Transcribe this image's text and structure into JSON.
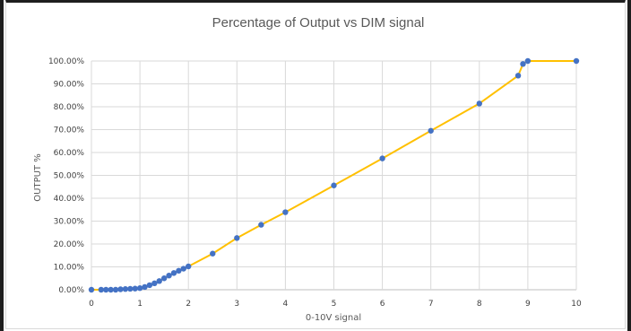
{
  "chart_data": {
    "type": "scatter",
    "title": "Percentage of Output vs DIM signal",
    "xlabel": "0-10V signal",
    "ylabel": "OUTPUT %",
    "xlim": [
      0,
      10
    ],
    "ylim": [
      0,
      100
    ],
    "x_ticks": [
      "0",
      "1",
      "2",
      "3",
      "4",
      "5",
      "6",
      "7",
      "8",
      "9",
      "10"
    ],
    "y_ticks": [
      "0.00%",
      "10.00%",
      "20.00%",
      "30.00%",
      "40.00%",
      "50.00%",
      "60.00%",
      "70.00%",
      "80.00%",
      "90.00%",
      "100.00%"
    ],
    "grid": true,
    "line_color": "#ffc000",
    "marker_color": "#4472c4",
    "series": [
      {
        "x": [
          0,
          0.2,
          0.3,
          0.4,
          0.5,
          0.6,
          0.7,
          0.8,
          0.9,
          1.0,
          1.1,
          1.2,
          1.3,
          1.4,
          1.5,
          1.6,
          1.7,
          1.8,
          1.9,
          2.0,
          2.5,
          3.0,
          3.5,
          4.0,
          5.0,
          6.0,
          7.0,
          8.0,
          8.8,
          8.9,
          9.0,
          10.0
        ],
        "y": [
          0,
          0,
          0,
          0,
          0,
          0.2,
          0.3,
          0.4,
          0.5,
          0.7,
          1.2,
          2.0,
          2.8,
          3.8,
          5.0,
          6.2,
          7.3,
          8.3,
          9.2,
          10.2,
          15.8,
          22.6,
          28.4,
          33.9,
          45.6,
          57.4,
          69.5,
          81.4,
          93.6,
          98.7,
          100,
          100
        ]
      }
    ]
  }
}
